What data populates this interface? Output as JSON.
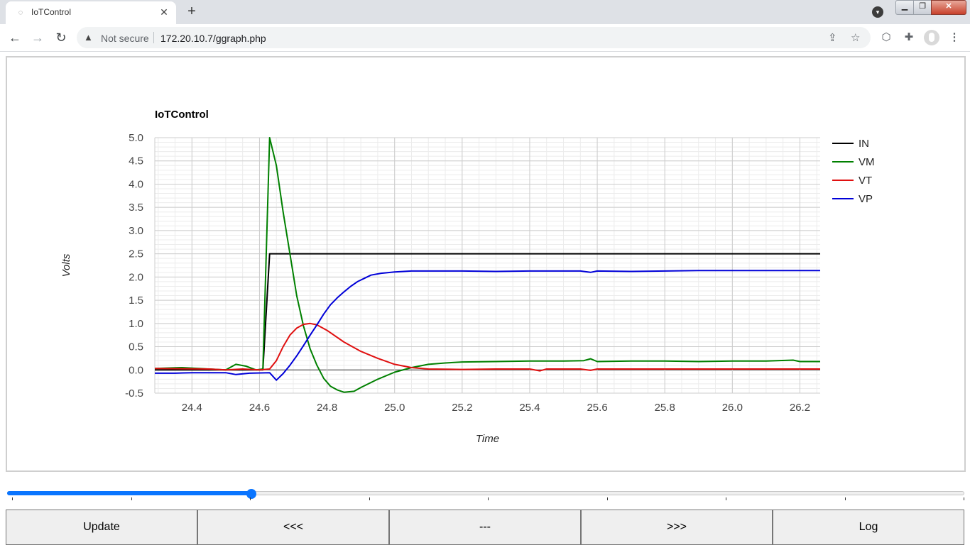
{
  "browser": {
    "tab_title": "IoTControl",
    "tab_icon": "globe-icon",
    "not_secure_label": "Not secure",
    "url": "172.20.10.7/ggraph.php"
  },
  "colors": {
    "IN": "#000000",
    "VM": "#008000",
    "VT": "#e01010",
    "VP": "#0000d8",
    "slider": "#0a75ff"
  },
  "slider": {
    "value": 0.255
  },
  "buttons": [
    "Update",
    "<<<",
    "---",
    ">>>",
    "Log"
  ],
  "chart_data": {
    "type": "line",
    "title": "IoTControl",
    "xlabel": "Time",
    "ylabel": "Volts",
    "xlim": [
      24.29,
      26.26
    ],
    "ylim": [
      -0.5,
      5.0
    ],
    "x_ticks": [
      "24.4",
      "24.6",
      "24.8",
      "25.0",
      "25.2",
      "25.4",
      "25.6",
      "25.8",
      "26.0",
      "26.2"
    ],
    "y_ticks": [
      "-0.5",
      "0.0",
      "0.5",
      "1.0",
      "1.5",
      "2.0",
      "2.5",
      "3.0",
      "3.5",
      "4.0",
      "4.5",
      "5.0"
    ],
    "grid": true,
    "legend_position": "right",
    "series": [
      {
        "name": "IN",
        "points": [
          [
            24.29,
            0.0
          ],
          [
            24.61,
            0.0
          ],
          [
            24.63,
            2.5
          ],
          [
            26.26,
            2.5
          ]
        ]
      },
      {
        "name": "VM",
        "points": [
          [
            24.29,
            0.03
          ],
          [
            24.37,
            0.05
          ],
          [
            24.45,
            0.02
          ],
          [
            24.5,
            0.0
          ],
          [
            24.53,
            0.12
          ],
          [
            24.56,
            0.08
          ],
          [
            24.59,
            0.0
          ],
          [
            24.61,
            0.02
          ],
          [
            24.63,
            5.0
          ],
          [
            24.65,
            4.4
          ],
          [
            24.67,
            3.4
          ],
          [
            24.69,
            2.5
          ],
          [
            24.71,
            1.6
          ],
          [
            24.73,
            0.95
          ],
          [
            24.75,
            0.45
          ],
          [
            24.77,
            0.1
          ],
          [
            24.79,
            -0.18
          ],
          [
            24.81,
            -0.35
          ],
          [
            24.83,
            -0.43
          ],
          [
            24.85,
            -0.48
          ],
          [
            24.88,
            -0.46
          ],
          [
            24.9,
            -0.38
          ],
          [
            24.95,
            -0.2
          ],
          [
            25.0,
            -0.05
          ],
          [
            25.05,
            0.05
          ],
          [
            25.1,
            0.12
          ],
          [
            25.15,
            0.15
          ],
          [
            25.2,
            0.17
          ],
          [
            25.3,
            0.18
          ],
          [
            25.4,
            0.19
          ],
          [
            25.5,
            0.19
          ],
          [
            25.56,
            0.2
          ],
          [
            25.58,
            0.24
          ],
          [
            25.6,
            0.18
          ],
          [
            25.7,
            0.19
          ],
          [
            25.8,
            0.19
          ],
          [
            25.9,
            0.18
          ],
          [
            26.0,
            0.19
          ],
          [
            26.1,
            0.19
          ],
          [
            26.18,
            0.21
          ],
          [
            26.2,
            0.18
          ],
          [
            26.26,
            0.18
          ]
        ]
      },
      {
        "name": "VT",
        "points": [
          [
            24.29,
            0.03
          ],
          [
            24.45,
            0.02
          ],
          [
            24.5,
            0.0
          ],
          [
            24.55,
            0.02
          ],
          [
            24.6,
            0.0
          ],
          [
            24.63,
            0.02
          ],
          [
            24.65,
            0.2
          ],
          [
            24.67,
            0.5
          ],
          [
            24.69,
            0.75
          ],
          [
            24.71,
            0.9
          ],
          [
            24.73,
            0.98
          ],
          [
            24.75,
            1.0
          ],
          [
            24.77,
            0.97
          ],
          [
            24.8,
            0.85
          ],
          [
            24.85,
            0.6
          ],
          [
            24.9,
            0.4
          ],
          [
            24.95,
            0.25
          ],
          [
            25.0,
            0.12
          ],
          [
            25.05,
            0.05
          ],
          [
            25.1,
            0.02
          ],
          [
            25.2,
            0.01
          ],
          [
            25.3,
            0.02
          ],
          [
            25.4,
            0.02
          ],
          [
            25.43,
            -0.02
          ],
          [
            25.45,
            0.02
          ],
          [
            25.55,
            0.02
          ],
          [
            25.58,
            -0.01
          ],
          [
            25.6,
            0.02
          ],
          [
            25.8,
            0.02
          ],
          [
            26.0,
            0.02
          ],
          [
            26.26,
            0.02
          ]
        ]
      },
      {
        "name": "VP",
        "points": [
          [
            24.29,
            -0.07
          ],
          [
            24.35,
            -0.07
          ],
          [
            24.4,
            -0.06
          ],
          [
            24.5,
            -0.06
          ],
          [
            24.53,
            -0.1
          ],
          [
            24.57,
            -0.07
          ],
          [
            24.63,
            -0.06
          ],
          [
            24.65,
            -0.22
          ],
          [
            24.67,
            -0.08
          ],
          [
            24.69,
            0.1
          ],
          [
            24.71,
            0.3
          ],
          [
            24.73,
            0.52
          ],
          [
            24.75,
            0.75
          ],
          [
            24.77,
            0.97
          ],
          [
            24.79,
            1.2
          ],
          [
            24.81,
            1.4
          ],
          [
            24.83,
            1.55
          ],
          [
            24.85,
            1.68
          ],
          [
            24.87,
            1.8
          ],
          [
            24.89,
            1.9
          ],
          [
            24.91,
            1.97
          ],
          [
            24.93,
            2.04
          ],
          [
            24.96,
            2.08
          ],
          [
            25.0,
            2.11
          ],
          [
            25.05,
            2.13
          ],
          [
            25.1,
            2.13
          ],
          [
            25.2,
            2.13
          ],
          [
            25.3,
            2.12
          ],
          [
            25.4,
            2.13
          ],
          [
            25.5,
            2.13
          ],
          [
            25.55,
            2.13
          ],
          [
            25.58,
            2.1
          ],
          [
            25.6,
            2.13
          ],
          [
            25.7,
            2.12
          ],
          [
            25.8,
            2.13
          ],
          [
            25.9,
            2.14
          ],
          [
            26.0,
            2.14
          ],
          [
            26.1,
            2.14
          ],
          [
            26.2,
            2.14
          ],
          [
            26.26,
            2.14
          ]
        ]
      }
    ]
  }
}
